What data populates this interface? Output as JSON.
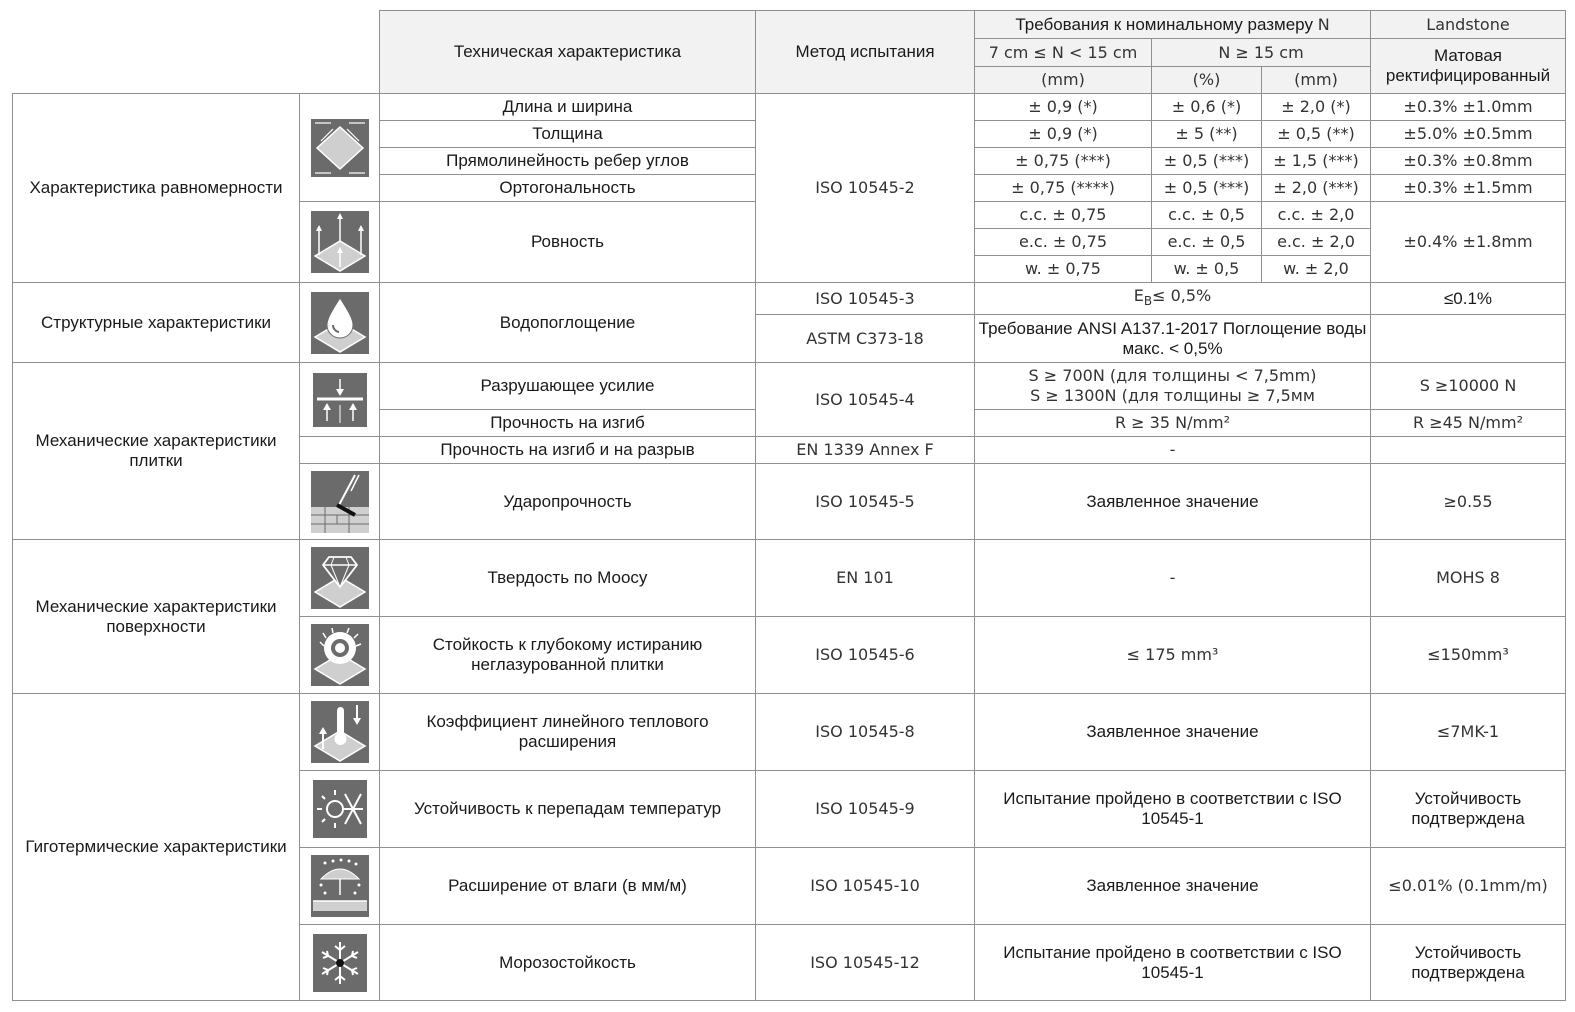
{
  "header": {
    "characteristic": "Техническая характеристика",
    "method": "Метод испытания",
    "requirements_prefix": "Требования к номинальному размеру",
    "requirements_n": "N",
    "range_small": "7 cm ≤ N < 15 cm",
    "range_large": "N ≥ 15 cm",
    "unit_mm": "(mm)",
    "unit_pct": "(%)",
    "unit_mm2": "(mm)",
    "brand": "Landstone",
    "product": "Матовая ректифицированный"
  },
  "categories": {
    "uniformity": "Характеристика равномерности",
    "structural": "Структурные характеристики",
    "mech_tile": "Механические характеристики плитки",
    "mech_surface": "Механические характеристики поверхности",
    "hygro": "Гиготермические характеристики"
  },
  "icons": [
    "tile-dimensions-icon",
    "flatness-icon",
    "water-drop-icon",
    "breaking-force-icon",
    "impact-icon",
    "diamond-icon",
    "abrasion-icon",
    "thermal-expansion-icon",
    "thermal-shock-icon",
    "moisture-expansion-icon",
    "frost-icon"
  ],
  "rows": {
    "length": {
      "name": "Длина и ширина",
      "c1": "± 0,9 (*)",
      "c2": "± 0,6 (*)",
      "c3": "± 2,0 (*)",
      "val": "±0.3% ±1.0mm"
    },
    "thickness": {
      "name": "Толщина",
      "c1": "± 0,9 (*)",
      "c2": "± 5 (**)",
      "c3": "± 0,5 (**)",
      "val": "±5.0% ±0.5mm"
    },
    "straightness": {
      "name": "Прямолинейность ребер углов",
      "c1": "± 0,75 (***)",
      "c2": "± 0,5 (***)",
      "c3": "± 1,5 (***)",
      "val": "±0.3% ±0.8mm"
    },
    "orthogonality": {
      "name": "Ортогональность",
      "c1": "± 0,75 (****)",
      "c2": "± 0,5 (***)",
      "c3": "± 2,0 (***)",
      "val": "±0.3% ±1.5mm"
    },
    "uniformity_method": "ISO 10545-2",
    "flatness": {
      "name": "Ровность",
      "cc1": "c.c. ± 0,75",
      "cc2": "c.c. ± 0,5",
      "cc3": "c.c. ± 2,0",
      "ec1": "e.c. ± 0,75",
      "ec2": "e.c. ± 0,5",
      "ec3": "e.c. ± 2,0",
      "w1": "w. ± 0,75",
      "w2": "w. ± 0,5",
      "w3": "w. ± 2,0",
      "val": "±0.4% ±1.8mm"
    },
    "water": {
      "name": "Водопоглощение",
      "method1": "ISO 10545-3",
      "req1_e": "E",
      "req1_sub": "B",
      "req1_rest": "≤ 0,5%",
      "val1": "≤0.1%",
      "method2": "ASTM C373-18",
      "req2": "Требование ANSI A137.1-2017 Поглощение воды макс. < 0,5%"
    },
    "breaking": {
      "name": "Разрушающее усилие",
      "method": "ISO 10545-4",
      "req_a": "S ≥ 700N (для толщины < 7,5mm)",
      "req_b": "S ≥ 1300N (для толщины ≥ 7,5мм",
      "val": "S ≥10000 N"
    },
    "bending": {
      "name": "Прочность на изгиб",
      "req": "R ≥ 35 N/mm²",
      "val": "R ≥45 N/mm²"
    },
    "bending_break": {
      "name": "Прочность на изгиб и на разрыв",
      "method": "EN 1339 Annex F",
      "req": "-"
    },
    "impact": {
      "name": "Ударопрочность",
      "method": "ISO 10545-5",
      "req": "Заявленное значение",
      "val": "≥0.55"
    },
    "mohs": {
      "name": "Твердость по Моосу",
      "method": "EN 101",
      "req": "-",
      "val": "MOHS 8"
    },
    "abrasion": {
      "name": "Стойкость к глубокому истиранию неглазурованной плитки",
      "method": "ISO 10545-6",
      "req": "≤ 175 mm³",
      "val": "≤150mm³"
    },
    "thermal_exp": {
      "name": "Коэффициент линейного теплового расширения",
      "method": "ISO 10545-8",
      "req": "Заявленное значение",
      "val": "≤7MK-1"
    },
    "thermal_shock": {
      "name": "Устойчивость к перепадам температур",
      "method": "ISO 10545-9",
      "req": "Испытание пройдено в соответствии с ISO 10545-1",
      "val": "Устойчивость подтверждена"
    },
    "moisture": {
      "name": "Расширение от влаги (в мм/м)",
      "method": "ISO 10545-10",
      "req": "Заявленное значение",
      "val": "≤0.01% (0.1mm/m)"
    },
    "frost": {
      "name": "Морозостойкость",
      "method": "ISO 10545-12",
      "req": "Испытание пройдено в соответствии с ISO 10545-1",
      "val": "Устойчивость подтверждена"
    }
  }
}
